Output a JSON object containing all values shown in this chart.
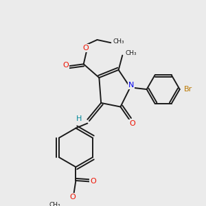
{
  "background_color": "#ebebeb",
  "bond_color": "#1a1a1a",
  "oxygen_color": "#ee1100",
  "nitrogen_color": "#0000ee",
  "bromine_color": "#bb7700",
  "hydrogen_color": "#008899",
  "figsize": [
    3.0,
    3.0
  ],
  "dpi": 100,
  "xlim": [
    0,
    10
  ],
  "ylim": [
    0,
    10
  ]
}
